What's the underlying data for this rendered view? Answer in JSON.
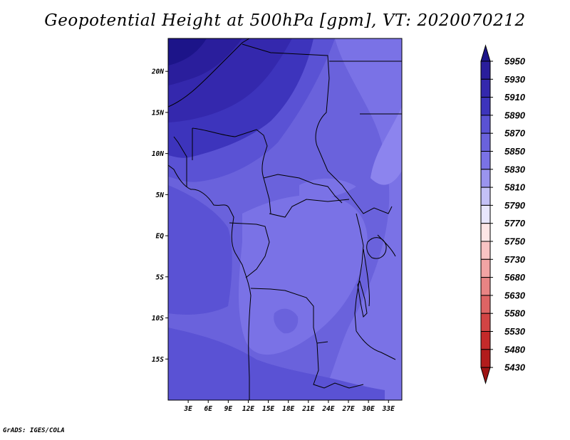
{
  "title": "Geopotential Height at 500hPa [gpm], VT: 2020070212",
  "credit": "GrADS: IGES/COLA",
  "map": {
    "lon_range": [
      0,
      35
    ],
    "lat_range": [
      -20,
      24
    ],
    "lat_ticks": [
      {
        "value": 20,
        "label": "20N"
      },
      {
        "value": 15,
        "label": "15N"
      },
      {
        "value": 10,
        "label": "10N"
      },
      {
        "value": 5,
        "label": "5N"
      },
      {
        "value": 0,
        "label": "EQ"
      },
      {
        "value": -5,
        "label": "5S"
      },
      {
        "value": -10,
        "label": "10S"
      },
      {
        "value": -15,
        "label": "15S"
      }
    ],
    "lon_ticks": [
      {
        "value": 3,
        "label": "3E"
      },
      {
        "value": 6,
        "label": "6E"
      },
      {
        "value": 9,
        "label": "9E"
      },
      {
        "value": 12,
        "label": "12E"
      },
      {
        "value": 15,
        "label": "15E"
      },
      {
        "value": 18,
        "label": "18E"
      },
      {
        "value": 21,
        "label": "21E"
      },
      {
        "value": 24,
        "label": "24E"
      },
      {
        "value": 27,
        "label": "27E"
      },
      {
        "value": 30,
        "label": "30E"
      },
      {
        "value": 33,
        "label": "33E"
      }
    ]
  },
  "colorbar": {
    "levels": [
      "5950",
      "5930",
      "5910",
      "5890",
      "5870",
      "5850",
      "5830",
      "5810",
      "5790",
      "5770",
      "5750",
      "5730",
      "5680",
      "5630",
      "5580",
      "5530",
      "5480",
      "5430"
    ],
    "colors": [
      "#1c1489",
      "#2a1e9c",
      "#3428ad",
      "#3d34bc",
      "#5a52d4",
      "#6a62dc",
      "#7a72e6",
      "#9a94ee",
      "#c4c1f6",
      "#e8e6fc",
      "#fde6e6",
      "#f9c4c4",
      "#f2a4a4",
      "#e88484",
      "#de6464",
      "#d24444",
      "#c42a2a",
      "#b21c1c",
      "#9e1414"
    ]
  }
}
